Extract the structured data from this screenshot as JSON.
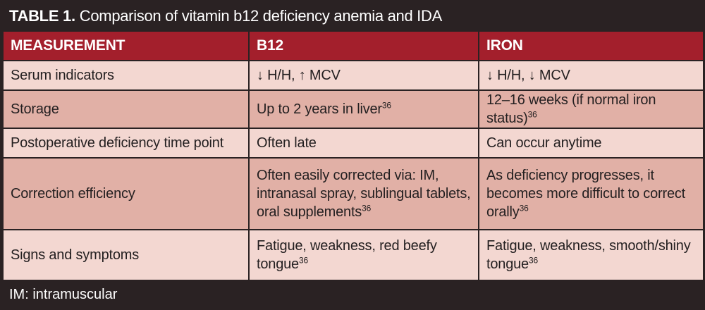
{
  "title": {
    "label": "TABLE 1.",
    "text": "Comparison of vitamin b12 deficiency anemia and IDA"
  },
  "headers": [
    "MEASUREMENT",
    "B12",
    "IRON"
  ],
  "rows": [
    {
      "measurement": "Serum indicators",
      "b12": "↓ H/H, ↑ MCV",
      "b12_ref": "",
      "iron": "↓ H/H, ↓ MCV",
      "iron_ref": ""
    },
    {
      "measurement": "Storage",
      "b12": "Up to 2 years in liver",
      "b12_ref": "36",
      "iron": "12–16 weeks (if normal iron status)",
      "iron_ref": "36"
    },
    {
      "measurement": "Postoperative deficiency time point",
      "b12": "Often late",
      "b12_ref": "",
      "iron": "Can occur anytime",
      "iron_ref": ""
    },
    {
      "measurement": "Correction efficiency",
      "b12": "Often easily corrected via: IM, intranasal spray, sublingual tablets, oral supplements",
      "b12_ref": "36",
      "iron": "As deficiency progresses, it becomes more difficult to correct orally",
      "iron_ref": "36"
    },
    {
      "measurement": "Signs and symptoms",
      "b12": "Fatigue, weakness, red beefy tongue",
      "b12_ref": "36",
      "iron": "Fatigue, weakness, smooth/shiny tongue",
      "iron_ref": "36"
    }
  ],
  "footer": "IM: intramuscular",
  "colors": {
    "frame": "#2a2223",
    "header": "#a31f2c",
    "row_light": "#f3d7d1",
    "row_dark": "#e1b0a6"
  }
}
